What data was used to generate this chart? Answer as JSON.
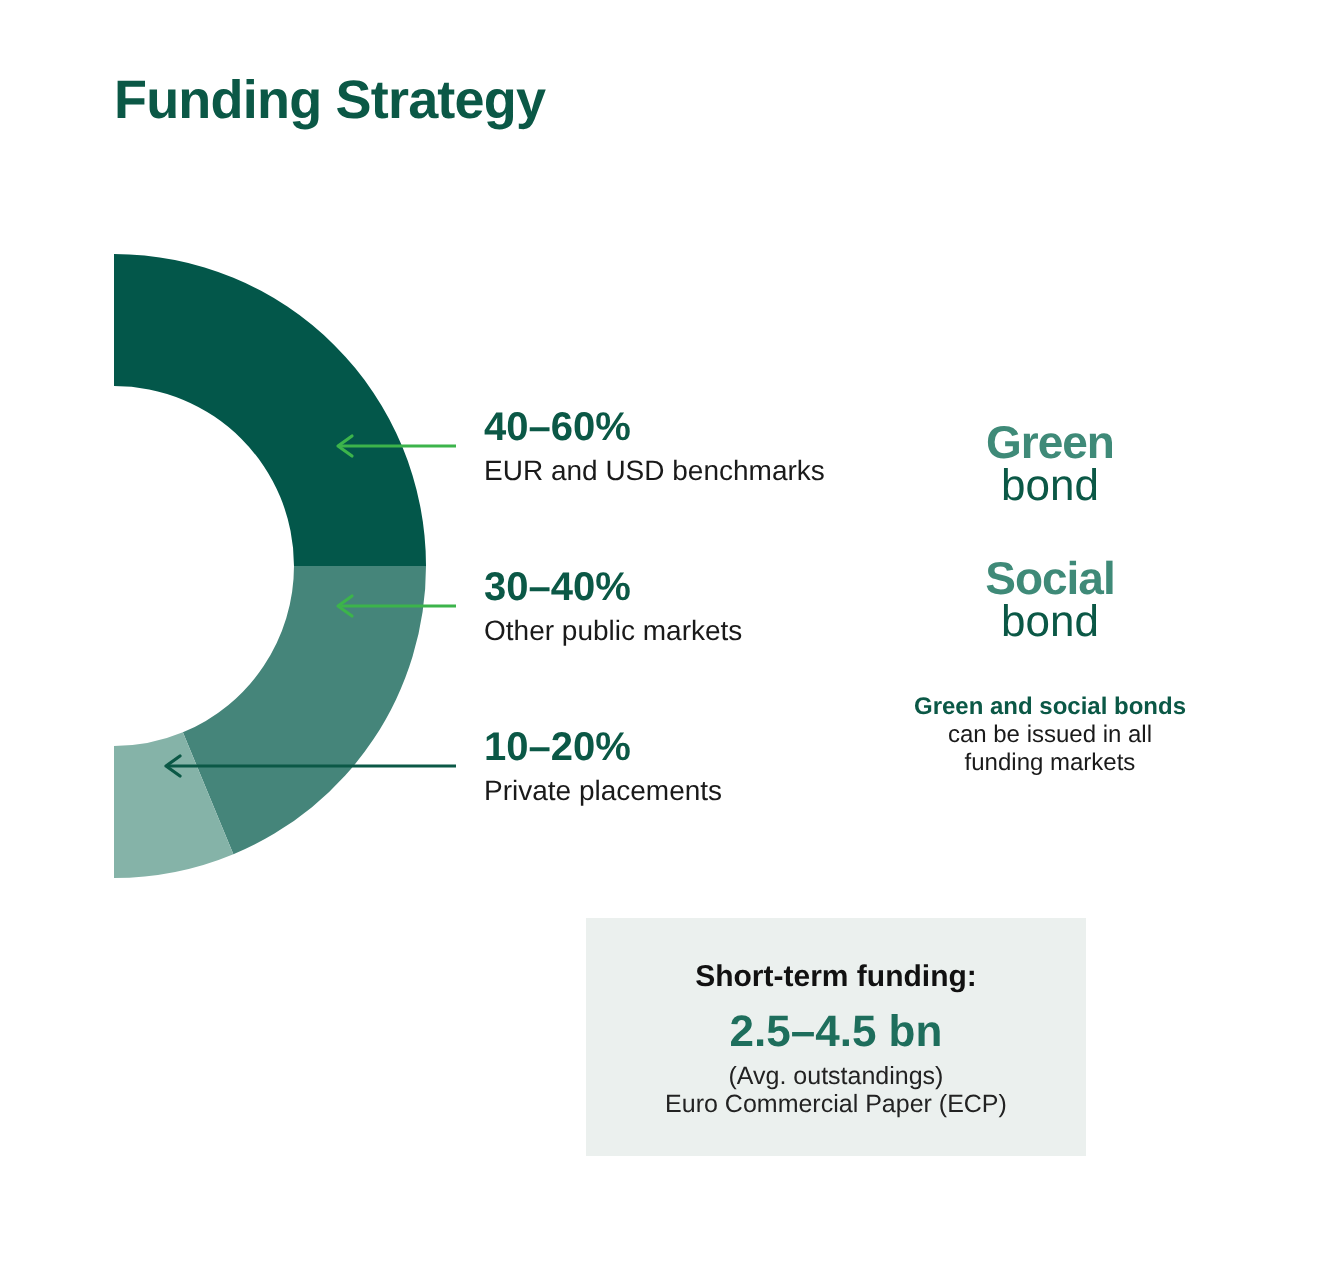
{
  "chart_data": [
    {
      "type": "donut",
      "title": "Funding Strategy",
      "categories": [
        "EUR and USD benchmarks",
        "Other public markets",
        "Private placements"
      ],
      "values": [
        40,
        30,
        10
      ],
      "colors": [
        "#03574a",
        "#45857a",
        "#85b3a8"
      ],
      "value_labels": [
        "40–60%",
        "30–40%",
        "10–20%"
      ],
      "annotations": [
        "Green bond",
        "Social bond",
        "Green and social bonds",
        "can be issued in all funding markets"
      ]
    },
    {
      "type": "other",
      "title": "Short-term funding:",
      "annotations": [
        "2.5–4.5 bn",
        "(Avg. outstandings)",
        "Euro Commercial Paper (ECP)"
      ]
    }
  ]
}
